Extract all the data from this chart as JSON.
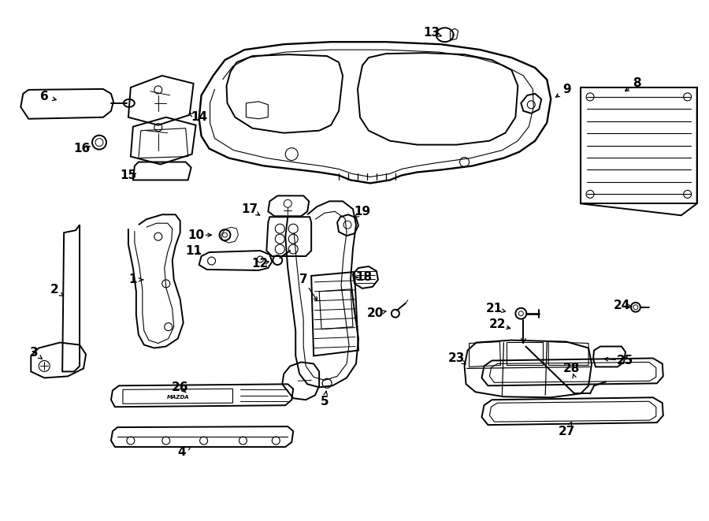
{
  "background_color": "#ffffff",
  "line_color": "#000000",
  "label_color": "#000000",
  "fig_width": 9.0,
  "fig_height": 6.61,
  "dpi": 100
}
